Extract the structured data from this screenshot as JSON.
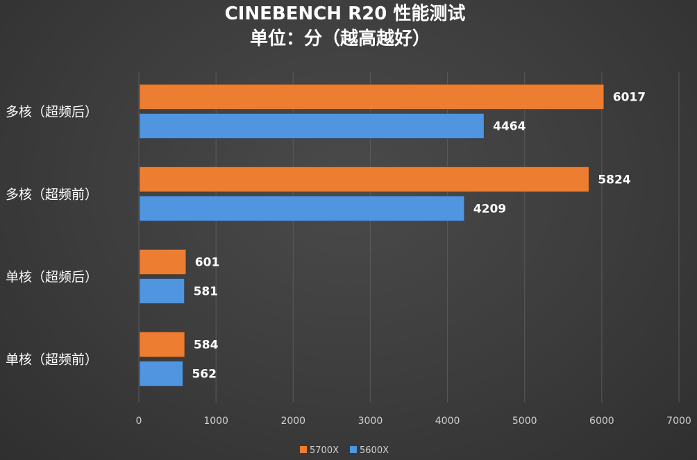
{
  "chart_data": {
    "type": "bar",
    "orientation": "horizontal",
    "title": "CINEBENCH R20 性能测试",
    "subtitle": "单位：分（越高越好）",
    "categories": [
      "多核（超频后）",
      "多核（超频前）",
      "单核（超频后）",
      "单核（超频前）"
    ],
    "series": [
      {
        "name": "5700X",
        "color": "#ed7d31",
        "values": [
          6017,
          5824,
          601,
          584
        ]
      },
      {
        "name": "5600X",
        "color": "#4f95e0",
        "values": [
          4464,
          4209,
          581,
          562
        ]
      }
    ],
    "xlim": [
      0,
      7000
    ],
    "xticks": [
      "0",
      "1000",
      "2000",
      "3000",
      "4000",
      "5000",
      "6000",
      "7000"
    ],
    "grid": true,
    "legend_position": "bottom"
  }
}
